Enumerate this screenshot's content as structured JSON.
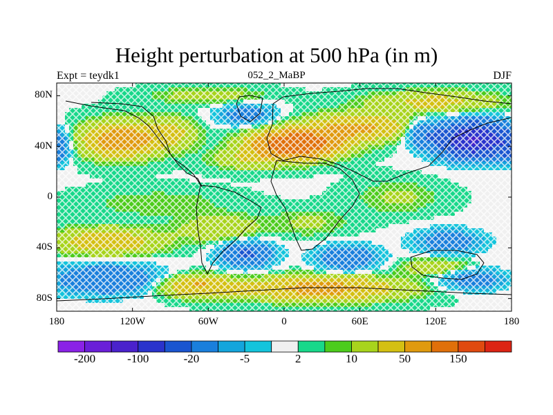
{
  "title": "Height perturbation at 500 hPa (in m)",
  "subtitle_left": "Expt = teydk1",
  "subtitle_center": "052_2_MaBP",
  "subtitle_right": "DJF",
  "lat_labels": [
    "80N",
    "40N",
    "0",
    "40S",
    "80S"
  ],
  "lon_labels": [
    "180",
    "120W",
    "60W",
    "0",
    "60E",
    "120E",
    "180"
  ],
  "colorbar": {
    "colors": [
      "#8a22e6",
      "#6a1fd8",
      "#4a22cc",
      "#2a33cc",
      "#1a55d0",
      "#1a7fdc",
      "#14a5dc",
      "#14c4dc",
      "#f0f0f0",
      "#18d88a",
      "#4ccc1c",
      "#a8d41c",
      "#d4c012",
      "#e09a0e",
      "#e0700a",
      "#e04a10",
      "#dc2414"
    ],
    "labels": [
      "-200",
      "-100",
      "-20",
      "-5",
      "2",
      "10",
      "50",
      "150"
    ]
  },
  "chart_data": {
    "type": "heatmap",
    "title": "Height perturbation at 500 hPa (in m)",
    "variable": "500 hPa geopotential height perturbation",
    "units": "m",
    "season": "DJF",
    "experiment": "teydk1",
    "period": "052_2_MaBP",
    "x_range": [
      -180,
      180
    ],
    "y_range": [
      -90,
      90
    ],
    "x_ticks": [
      -180,
      -120,
      -60,
      0,
      60,
      120,
      180
    ],
    "y_ticks": [
      80,
      40,
      0,
      -40,
      -80
    ],
    "levels": [
      -200,
      -100,
      -20,
      -5,
      2,
      10,
      50,
      150
    ],
    "features": [
      {
        "lon": -130,
        "lat": 45,
        "amp": 60,
        "rx": 28,
        "ry": 13
      },
      {
        "lon": -90,
        "lat": 50,
        "amp": 25,
        "rx": 20,
        "ry": 12
      },
      {
        "lon": 10,
        "lat": 42,
        "amp": 120,
        "rx": 32,
        "ry": 10
      },
      {
        "lon": 60,
        "lat": 55,
        "amp": 45,
        "rx": 40,
        "ry": 10
      },
      {
        "lon": -25,
        "lat": 30,
        "amp": 20,
        "rx": 30,
        "ry": 8
      },
      {
        "lon": 150,
        "lat": 45,
        "amp": -130,
        "rx": 26,
        "ry": 13
      },
      {
        "lon": 110,
        "lat": 50,
        "amp": -35,
        "rx": 14,
        "ry": 10
      },
      {
        "lon": -180,
        "lat": 40,
        "amp": -40,
        "rx": 10,
        "ry": 12
      },
      {
        "lon": 180,
        "lat": 40,
        "amp": -40,
        "rx": 10,
        "ry": 12
      },
      {
        "lon": -30,
        "lat": 65,
        "amp": -25,
        "rx": 22,
        "ry": 8
      },
      {
        "lon": 120,
        "lat": 75,
        "amp": 25,
        "rx": 50,
        "ry": 8
      },
      {
        "lon": -60,
        "lat": 80,
        "amp": 15,
        "rx": 40,
        "ry": 6
      },
      {
        "lon": -140,
        "lat": -35,
        "amp": 35,
        "rx": 40,
        "ry": 10
      },
      {
        "lon": -140,
        "lat": -65,
        "amp": -40,
        "rx": 40,
        "ry": 11
      },
      {
        "lon": -30,
        "lat": -45,
        "amp": -45,
        "rx": 20,
        "ry": 10
      },
      {
        "lon": 50,
        "lat": -48,
        "amp": -40,
        "rx": 22,
        "ry": 9
      },
      {
        "lon": 130,
        "lat": -35,
        "amp": -30,
        "rx": 25,
        "ry": 9
      },
      {
        "lon": 150,
        "lat": -65,
        "amp": -28,
        "rx": 25,
        "ry": 8
      },
      {
        "lon": -70,
        "lat": -70,
        "amp": 40,
        "rx": 30,
        "ry": 8
      },
      {
        "lon": 30,
        "lat": -72,
        "amp": 50,
        "rx": 60,
        "ry": 9
      },
      {
        "lon": 120,
        "lat": -55,
        "amp": 20,
        "rx": 25,
        "ry": 6
      },
      {
        "lon": -100,
        "lat": -5,
        "amp": 8,
        "rx": 50,
        "ry": 10
      },
      {
        "lon": 90,
        "lat": 0,
        "amp": 10,
        "rx": 30,
        "ry": 12
      },
      {
        "lon": -50,
        "lat": -25,
        "amp": 20,
        "rx": 30,
        "ry": 10
      },
      {
        "lon": 20,
        "lat": -20,
        "amp": 10,
        "rx": 30,
        "ry": 10
      }
    ]
  }
}
